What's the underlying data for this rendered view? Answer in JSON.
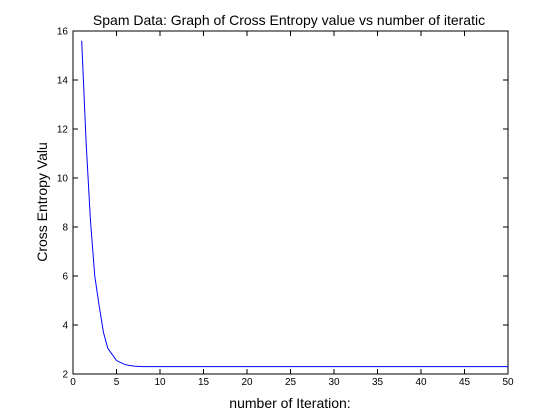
{
  "chart_data": {
    "type": "line",
    "title": "Spam Data: Graph of Cross Entropy value vs number of iteratic",
    "xlabel": "number of Iteration:",
    "ylabel": "Cross Entropy Valu",
    "xlim": [
      0,
      50
    ],
    "ylim": [
      2,
      16
    ],
    "xticks": [
      0,
      5,
      10,
      15,
      20,
      25,
      30,
      35,
      40,
      45,
      50
    ],
    "yticks": [
      2,
      4,
      6,
      8,
      10,
      12,
      14,
      16
    ],
    "xtick_labels": [
      "0",
      "5",
      "10",
      "15",
      "20",
      "25",
      "30",
      "35",
      "40",
      "45",
      "50"
    ],
    "ytick_labels": [
      "2",
      "4",
      "6",
      "8",
      "10",
      "12",
      "14",
      "16"
    ],
    "grid": false,
    "series": [
      {
        "color": "#0000ff",
        "x": [
          1,
          1.5,
          2,
          2.5,
          3,
          3.5,
          4,
          5,
          6,
          7,
          8,
          10,
          15,
          20,
          25,
          30,
          35,
          40,
          45,
          50
        ],
        "y": [
          15.6,
          11.5,
          8.3,
          6.0,
          4.8,
          3.7,
          3.05,
          2.55,
          2.38,
          2.32,
          2.3,
          2.3,
          2.3,
          2.3,
          2.3,
          2.3,
          2.3,
          2.3,
          2.3,
          2.3
        ]
      }
    ]
  }
}
